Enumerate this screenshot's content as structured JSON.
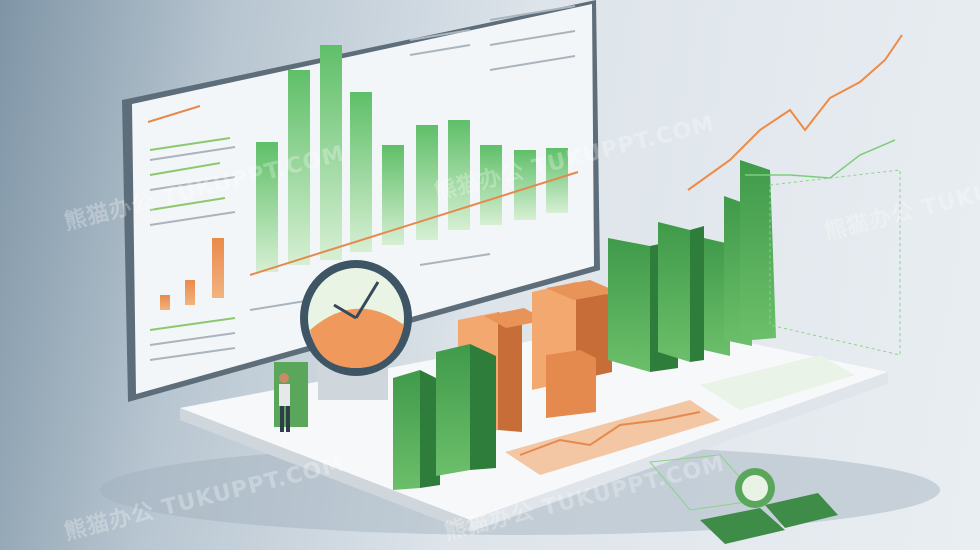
{
  "watermarks": [
    "熊猫办公 TUKUPPT.COM",
    "熊猫办公 TUKUPPT.COM",
    "熊猫办公 TUKUPPT.COM",
    "熊猫办公 TUKUPPT.COM",
    "熊猫办公 TUKUPPT.COM"
  ],
  "colors": {
    "green": "#4caf5a",
    "light_green": "#9ed69a",
    "orange": "#e58a4e",
    "screen": "#f3f6f8",
    "platform": "#f7f8f9"
  }
}
